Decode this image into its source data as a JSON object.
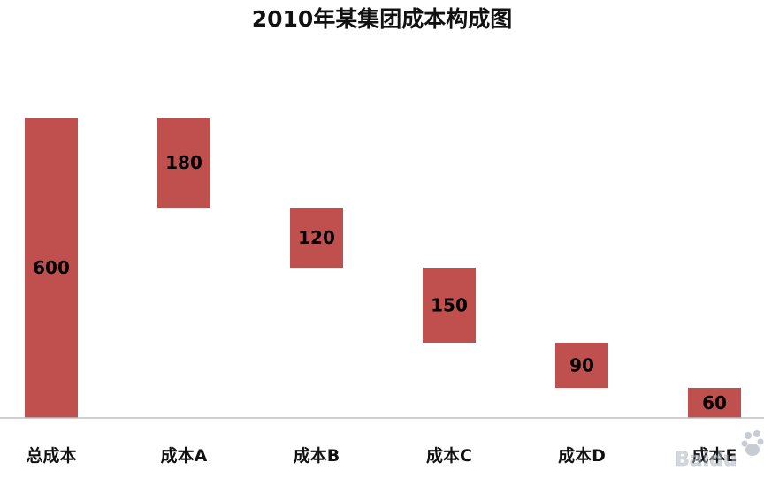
{
  "chart_data": {
    "type": "bar",
    "subtype": "waterfall",
    "title": "2010年某集团成本构成图",
    "xlabel": "",
    "ylabel": "",
    "categories": [
      "总成本",
      "成本A",
      "成本B",
      "成本C",
      "成本D",
      "成本E"
    ],
    "values": [
      600,
      180,
      120,
      150,
      90,
      60
    ],
    "bases": [
      0,
      420,
      300,
      150,
      60,
      0
    ],
    "ylim": [
      0,
      600
    ],
    "grid": false,
    "legend": "none",
    "bar_color": "#c0504d",
    "axis_color": "#bfbfbf"
  },
  "watermark": {
    "text": "Baidu",
    "logo": "baidu-paw-icon"
  }
}
